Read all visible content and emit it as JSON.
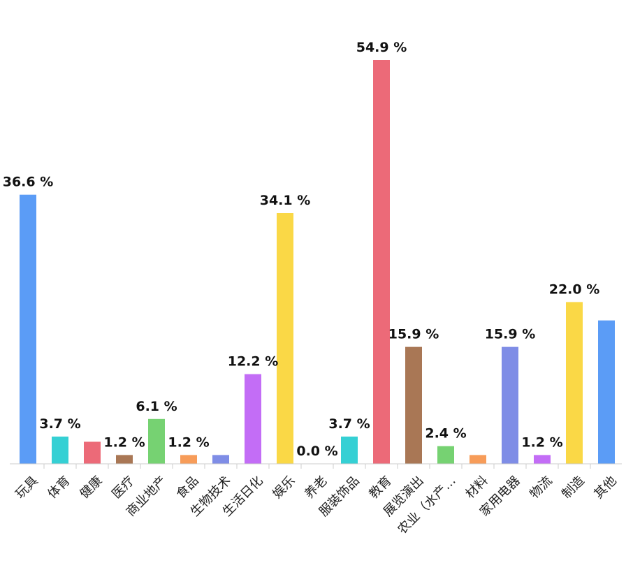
{
  "chart_data": {
    "type": "bar",
    "title": "",
    "xlabel": "",
    "ylabel": "",
    "categories": [
      "玩具",
      "体育",
      "健康",
      "医疗",
      "商业地产",
      "食品",
      "生物技术",
      "生活日化",
      "娱乐",
      "养老",
      "服装饰品",
      "教育",
      "展览演出",
      "农业（水产…",
      "材料",
      "家用电器",
      "物流",
      "制造",
      "其他"
    ],
    "values": [
      36.6,
      3.7,
      3.0,
      1.2,
      6.1,
      1.2,
      1.2,
      12.2,
      34.1,
      0.0,
      3.7,
      54.9,
      15.9,
      2.4,
      1.2,
      15.9,
      1.2,
      22.0,
      19.5
    ],
    "value_labels": [
      "36.6 %",
      "3.7 %",
      "",
      "1.2 %",
      "6.1 %",
      "1.2 %",
      "",
      "12.2 %",
      "34.1 %",
      "0.0 %",
      "3.7 %",
      "54.9 %",
      "15.9 %",
      "2.4 %",
      "",
      "15.9 %",
      "1.2 %",
      "22.0 %",
      ""
    ],
    "colors": [
      "#5b9cf6",
      "#35d0d4",
      "#ec6a78",
      "#a97755",
      "#76d272",
      "#f79c59",
      "#7f8de6",
      "#c36df6",
      "#fad846",
      "#35d0d4",
      "#35d0d4",
      "#ec6a78",
      "#a97755",
      "#76d272",
      "#f79c59",
      "#7f8de6",
      "#c36df6",
      "#fad846",
      "#5b9cf6"
    ],
    "ylim": [
      0,
      60
    ],
    "grid": false,
    "legend": "none",
    "axis_color": "#cccccc"
  }
}
